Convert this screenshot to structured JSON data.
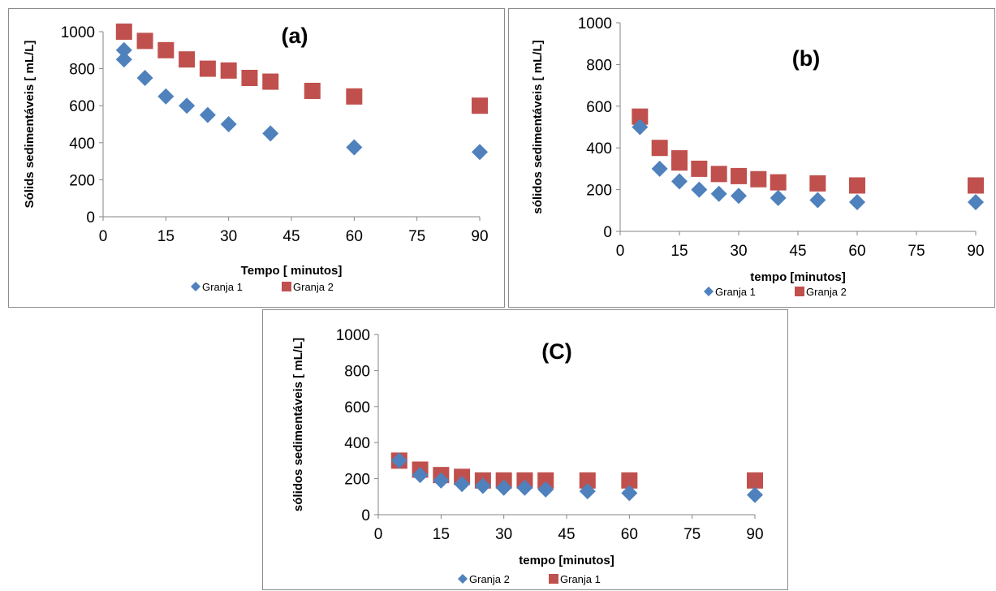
{
  "colors": {
    "series_blue": "#4f81bd",
    "series_red": "#c0504d",
    "axis": "#868686"
  },
  "chart_data": [
    {
      "type": "scatter",
      "title": "(a)",
      "xlabel": "Tempo [ minutos]",
      "ylabel": "Sólids sedimentáveis [ mL/L]",
      "xlim": [
        0,
        90
      ],
      "ylim": [
        0,
        1000
      ],
      "xticks": [
        "0",
        "15",
        "30",
        "45",
        "60",
        "75",
        "90"
      ],
      "yticks": [
        "0",
        "200",
        "400",
        "600",
        "800",
        "1000"
      ],
      "grid": false,
      "legend_position": "bottom",
      "series": [
        {
          "name": "Granja 1",
          "marker": "diamond",
          "color": "#4f81bd",
          "x": [
            5,
            5,
            10,
            15,
            20,
            25,
            30,
            40,
            60,
            90
          ],
          "y": [
            900,
            850,
            750,
            650,
            600,
            550,
            500,
            450,
            375,
            350
          ]
        },
        {
          "name": "Granja 2",
          "marker": "square",
          "color": "#c0504d",
          "x": [
            5,
            10,
            15,
            20,
            25,
            30,
            35,
            40,
            50,
            60,
            90
          ],
          "y": [
            1000,
            950,
            900,
            850,
            800,
            790,
            750,
            730,
            680,
            650,
            600
          ]
        }
      ]
    },
    {
      "type": "scatter",
      "title": "(b)",
      "xlabel": "tempo [minutos]",
      "ylabel": "sólidos sedimentáveis [ mL/L]",
      "xlim": [
        0,
        90
      ],
      "ylim": [
        0,
        1000
      ],
      "xticks": [
        "0",
        "15",
        "30",
        "45",
        "60",
        "75",
        "90"
      ],
      "yticks": [
        "0",
        "200",
        "400",
        "600",
        "800",
        "1000"
      ],
      "grid": false,
      "legend_position": "bottom",
      "series": [
        {
          "name": "Granja 1",
          "marker": "diamond",
          "color": "#4f81bd",
          "x": [
            5,
            10,
            15,
            20,
            25,
            30,
            40,
            50,
            60,
            90
          ],
          "y": [
            500,
            300,
            240,
            200,
            180,
            170,
            160,
            150,
            140,
            140
          ]
        },
        {
          "name": "Granja 2",
          "marker": "square",
          "color": "#c0504d",
          "x": [
            5,
            10,
            15,
            15,
            20,
            25,
            30,
            35,
            40,
            50,
            60,
            90
          ],
          "y": [
            550,
            400,
            350,
            330,
            300,
            275,
            265,
            250,
            235,
            230,
            220,
            220
          ]
        }
      ]
    },
    {
      "type": "scatter",
      "title": "(C)",
      "xlabel": "tempo [minutos]",
      "ylabel": "sólidos sedimentáveis [ mL/L]",
      "xlim": [
        0,
        90
      ],
      "ylim": [
        0,
        1000
      ],
      "xticks": [
        "0",
        "15",
        "30",
        "45",
        "60",
        "75",
        "90"
      ],
      "yticks": [
        "0",
        "200",
        "400",
        "600",
        "800",
        "1000"
      ],
      "grid": false,
      "legend_position": "bottom",
      "series": [
        {
          "name": "Granja 2",
          "marker": "diamond",
          "color": "#4f81bd",
          "x": [
            5,
            10,
            15,
            20,
            25,
            30,
            35,
            40,
            50,
            60,
            90
          ],
          "y": [
            300,
            220,
            190,
            170,
            160,
            150,
            150,
            140,
            130,
            120,
            110
          ]
        },
        {
          "name": "Granja 1",
          "marker": "square",
          "color": "#c0504d",
          "x": [
            5,
            10,
            15,
            20,
            25,
            30,
            35,
            40,
            50,
            60,
            90
          ],
          "y": [
            300,
            250,
            220,
            210,
            190,
            190,
            190,
            190,
            190,
            190,
            190
          ]
        }
      ]
    }
  ]
}
